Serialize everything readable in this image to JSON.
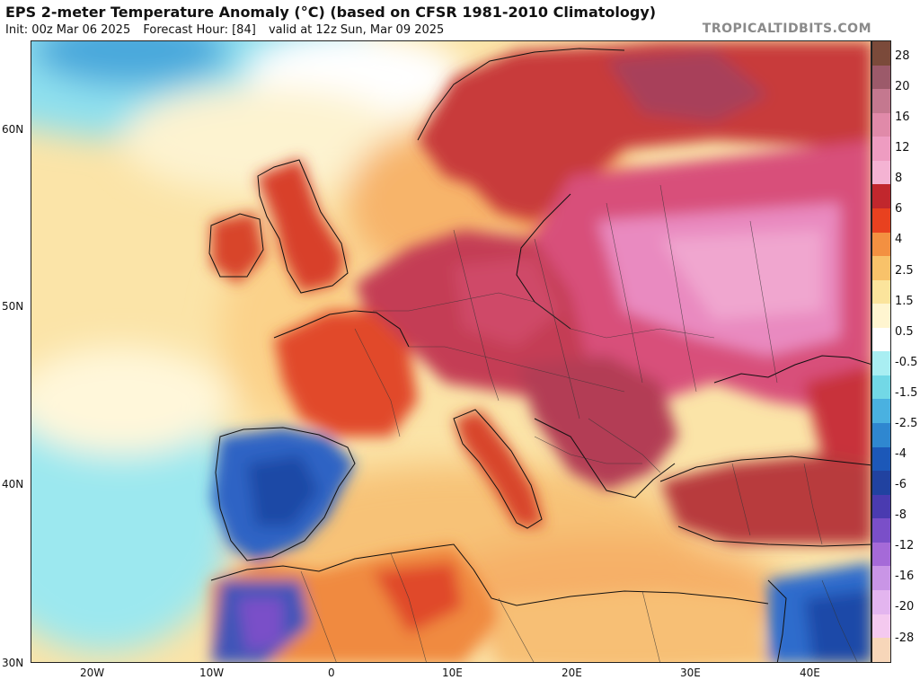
{
  "header": {
    "title": "EPS 2-meter Temperature Anomaly (°C) (based on CFSR 1981-2010 Climatology)",
    "init": "Init: 00z Mar 06 2025",
    "forecast_hour": "Forecast Hour: [84]",
    "valid": "valid at 12z Sun, Mar 09 2025",
    "source": "TROPICALTIDBITS.COM"
  },
  "axes": {
    "lat_labels": [
      "60N",
      "50N",
      "40N",
      "30N"
    ],
    "lon_labels": [
      "20W",
      "10W",
      "0",
      "10E",
      "20E",
      "30E",
      "40E"
    ]
  },
  "colorbar": {
    "labels": [
      "28",
      "20",
      "16",
      "12",
      "8",
      "6",
      "4",
      "2.5",
      "1.5",
      "0.5",
      "-0.5",
      "-1.5",
      "-2.5",
      "-4",
      "-6",
      "-8",
      "-12",
      "-16",
      "-20",
      "-28"
    ],
    "colors": [
      "#7b4a3a",
      "#9c5a6a",
      "#c4788f",
      "#e08aa9",
      "#ee9cc1",
      "#f4b3d3",
      "#c1272d",
      "#e8411f",
      "#f39041",
      "#f8c26a",
      "#fbe49c",
      "#fff5d0",
      "#ffffff",
      "#a9eef2",
      "#72d8e6",
      "#4ab1e0",
      "#2f87d0",
      "#1c58b8",
      "#2142a0",
      "#4a3bb0",
      "#7a4fc8",
      "#a56ad8",
      "#c995e6",
      "#e3b5ef",
      "#f4c9ef",
      "#f7d6b9"
    ]
  }
}
